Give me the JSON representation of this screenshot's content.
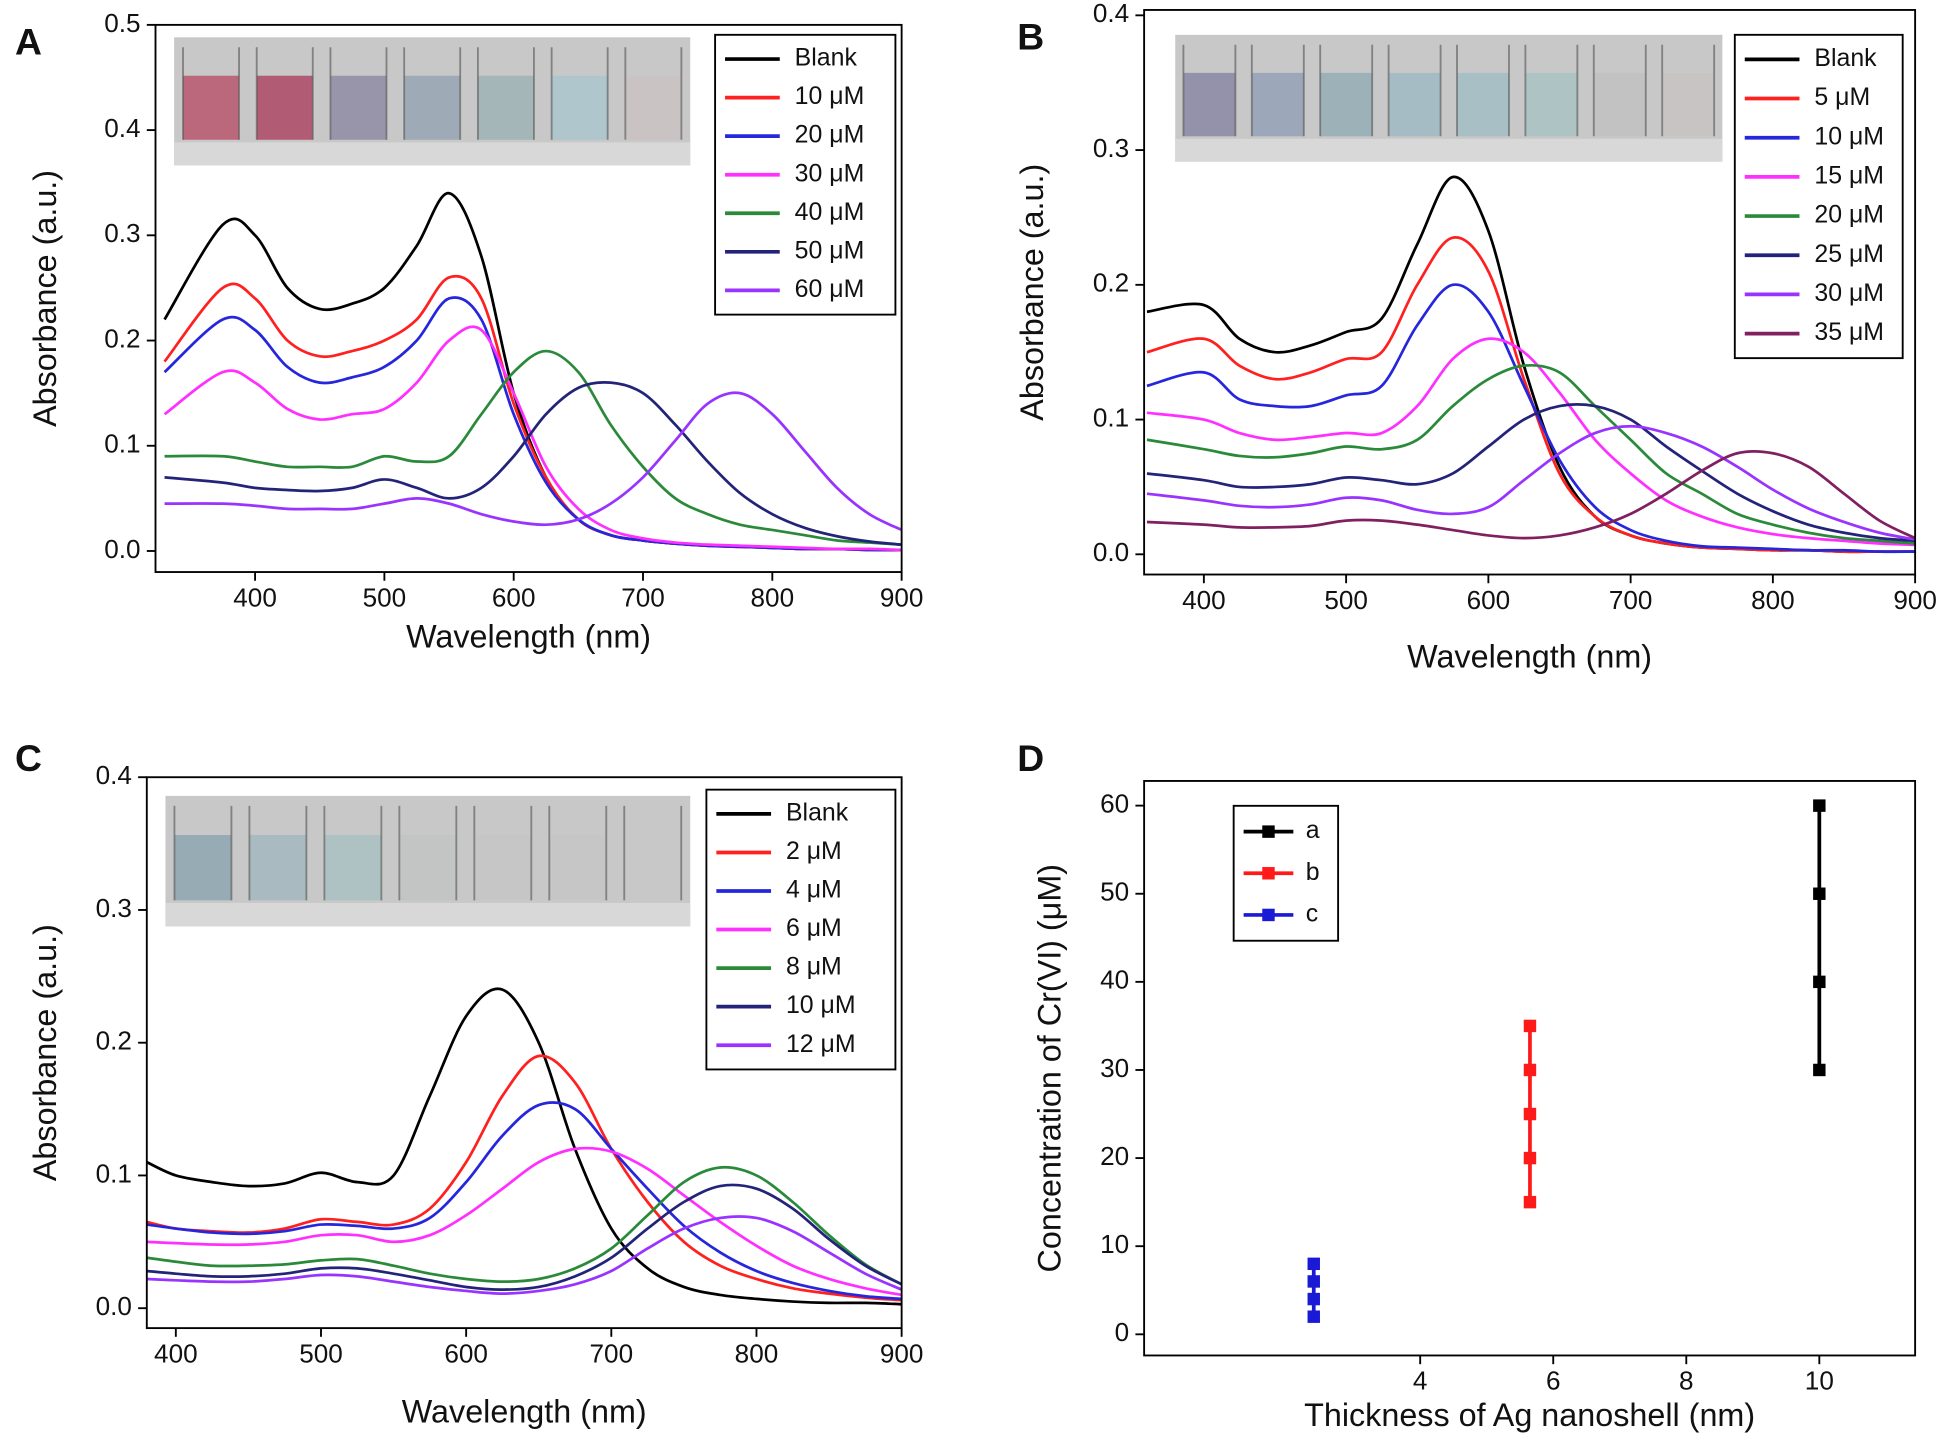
{
  "chart_data": [
    {
      "type": "line",
      "title": "A",
      "x_label": "Wavelength (nm)",
      "y_label": "Absorbance (a.u.)",
      "legend": "upper right",
      "xlim": [
        323,
        900
      ],
      "ylim": [
        -0.02,
        0.5
      ],
      "xticks": [
        400,
        500,
        600,
        700,
        800,
        900
      ],
      "yticks": [
        {
          "value": 0,
          "label": "0.0"
        },
        0.1,
        0.2,
        0.3,
        0.4,
        0.5
      ],
      "x": [
        330,
        375,
        400,
        425,
        450,
        475,
        500,
        525,
        550,
        575,
        600,
        625,
        650,
        675,
        700,
        725,
        750,
        775,
        800,
        825,
        850,
        875,
        900
      ],
      "series": [
        {
          "name": "Blank",
          "color": "#000000",
          "values": [
            0.22,
            0.31,
            0.3,
            0.25,
            0.23,
            0.235,
            0.25,
            0.29,
            0.34,
            0.28,
            0.15,
            0.07,
            0.03,
            0.015,
            0.01,
            0.007,
            0.005,
            0.004,
            0.003,
            0.002,
            0.002,
            0.001,
            0.001
          ]
        },
        {
          "name": "10 μM",
          "color": "#ff2020",
          "values": [
            0.18,
            0.25,
            0.24,
            0.2,
            0.185,
            0.19,
            0.2,
            0.22,
            0.26,
            0.24,
            0.14,
            0.07,
            0.03,
            0.015,
            0.01,
            0.007,
            0.005,
            0.004,
            0.003,
            0.002,
            0.002,
            0.001,
            0.001
          ]
        },
        {
          "name": "20 μM",
          "color": "#2626dc",
          "values": [
            0.17,
            0.22,
            0.21,
            0.175,
            0.16,
            0.165,
            0.175,
            0.2,
            0.24,
            0.22,
            0.13,
            0.065,
            0.03,
            0.015,
            0.01,
            0.007,
            0.005,
            0.004,
            0.003,
            0.002,
            0.002,
            0.001,
            0.001
          ]
        },
        {
          "name": "30 μM",
          "color": "#ff30ff",
          "values": [
            0.13,
            0.17,
            0.16,
            0.135,
            0.125,
            0.13,
            0.135,
            0.16,
            0.2,
            0.21,
            0.15,
            0.08,
            0.04,
            0.02,
            0.012,
            0.008,
            0.006,
            0.005,
            0.004,
            0.003,
            0.002,
            0.002,
            0.001
          ]
        },
        {
          "name": "40 μM",
          "color": "#2a8a3a",
          "values": [
            0.09,
            0.09,
            0.085,
            0.08,
            0.08,
            0.08,
            0.09,
            0.085,
            0.09,
            0.13,
            0.17,
            0.19,
            0.17,
            0.12,
            0.08,
            0.05,
            0.035,
            0.025,
            0.02,
            0.015,
            0.01,
            0.008,
            0.006
          ]
        },
        {
          "name": "50 μM",
          "color": "#23237a",
          "values": [
            0.07,
            0.065,
            0.06,
            0.058,
            0.057,
            0.06,
            0.068,
            0.06,
            0.05,
            0.06,
            0.09,
            0.13,
            0.155,
            0.16,
            0.15,
            0.12,
            0.085,
            0.055,
            0.035,
            0.022,
            0.014,
            0.009,
            0.006
          ]
        },
        {
          "name": "60 μM",
          "color": "#9933ff",
          "values": [
            0.045,
            0.045,
            0.043,
            0.04,
            0.04,
            0.04,
            0.045,
            0.05,
            0.045,
            0.035,
            0.028,
            0.025,
            0.03,
            0.045,
            0.07,
            0.105,
            0.14,
            0.15,
            0.13,
            0.095,
            0.06,
            0.035,
            0.02
          ]
        }
      ]
    },
    {
      "type": "line",
      "title": "B",
      "x_label": "Wavelength (nm)",
      "y_label": "Absorbance (a.u.)",
      "legend": "upper right",
      "xlim": [
        358,
        900
      ],
      "ylim": [
        -0.015,
        0.404
      ],
      "xticks": [
        400,
        500,
        600,
        700,
        800,
        900
      ],
      "yticks": [
        {
          "value": 0,
          "label": "0.0"
        },
        0.1,
        0.2,
        0.3,
        0.4
      ],
      "x": [
        360,
        400,
        425,
        450,
        475,
        500,
        525,
        550,
        575,
        600,
        625,
        650,
        675,
        700,
        725,
        750,
        775,
        800,
        825,
        850,
        875,
        900
      ],
      "series": [
        {
          "name": "Blank",
          "color": "#000000",
          "values": [
            0.18,
            0.185,
            0.16,
            0.15,
            0.155,
            0.165,
            0.175,
            0.23,
            0.28,
            0.24,
            0.14,
            0.065,
            0.028,
            0.014,
            0.008,
            0.005,
            0.004,
            0.003,
            0.003,
            0.002,
            0.002,
            0.002
          ]
        },
        {
          "name": "5 μM",
          "color": "#ff2020",
          "values": [
            0.15,
            0.16,
            0.14,
            0.13,
            0.135,
            0.145,
            0.15,
            0.2,
            0.235,
            0.21,
            0.13,
            0.06,
            0.028,
            0.014,
            0.008,
            0.005,
            0.004,
            0.003,
            0.003,
            0.002,
            0.002,
            0.002
          ]
        },
        {
          "name": "10 μM",
          "color": "#2626dc",
          "values": [
            0.125,
            0.135,
            0.115,
            0.11,
            0.11,
            0.118,
            0.125,
            0.17,
            0.2,
            0.18,
            0.125,
            0.07,
            0.035,
            0.018,
            0.01,
            0.006,
            0.005,
            0.004,
            0.003,
            0.003,
            0.002,
            0.002
          ]
        },
        {
          "name": "15 μM",
          "color": "#ff30ff",
          "values": [
            0.105,
            0.1,
            0.09,
            0.085,
            0.087,
            0.09,
            0.09,
            0.11,
            0.145,
            0.16,
            0.15,
            0.12,
            0.085,
            0.06,
            0.04,
            0.028,
            0.02,
            0.015,
            0.012,
            0.01,
            0.008,
            0.007
          ]
        },
        {
          "name": "20 μM",
          "color": "#2a8a3a",
          "values": [
            0.085,
            0.078,
            0.073,
            0.072,
            0.075,
            0.08,
            0.078,
            0.085,
            0.11,
            0.13,
            0.14,
            0.135,
            0.11,
            0.085,
            0.06,
            0.045,
            0.03,
            0.022,
            0.016,
            0.012,
            0.01,
            0.008
          ]
        },
        {
          "name": "25 μM",
          "color": "#23237a",
          "values": [
            0.06,
            0.055,
            0.05,
            0.05,
            0.052,
            0.057,
            0.055,
            0.052,
            0.06,
            0.08,
            0.1,
            0.11,
            0.11,
            0.1,
            0.08,
            0.062,
            0.045,
            0.032,
            0.022,
            0.016,
            0.012,
            0.01
          ]
        },
        {
          "name": "30 μM",
          "color": "#9933ff",
          "values": [
            0.045,
            0.04,
            0.036,
            0.035,
            0.037,
            0.042,
            0.04,
            0.033,
            0.03,
            0.035,
            0.055,
            0.075,
            0.09,
            0.095,
            0.09,
            0.08,
            0.065,
            0.048,
            0.034,
            0.024,
            0.016,
            0.011
          ]
        },
        {
          "name": "35 μM",
          "color": "#802060",
          "values": [
            0.024,
            0.022,
            0.02,
            0.02,
            0.021,
            0.025,
            0.025,
            0.022,
            0.018,
            0.014,
            0.012,
            0.014,
            0.02,
            0.03,
            0.045,
            0.062,
            0.075,
            0.075,
            0.065,
            0.045,
            0.025,
            0.012
          ]
        }
      ]
    },
    {
      "type": "line",
      "title": "C",
      "x_label": "Wavelength (nm)",
      "y_label": "Absorbance (a.u.)",
      "legend": "upper right",
      "xlim": [
        380,
        900
      ],
      "ylim": [
        -0.015,
        0.4
      ],
      "xticks": [
        400,
        500,
        600,
        700,
        800,
        900
      ],
      "yticks": [
        {
          "value": 0,
          "label": "0.0"
        },
        0.1,
        0.2,
        0.3,
        0.4
      ],
      "x": [
        380,
        400,
        425,
        450,
        475,
        500,
        525,
        550,
        575,
        600,
        625,
        650,
        675,
        700,
        725,
        750,
        775,
        800,
        825,
        850,
        875,
        900
      ],
      "series": [
        {
          "name": "Blank",
          "color": "#000000",
          "values": [
            0.11,
            0.1,
            0.095,
            0.092,
            0.094,
            0.102,
            0.095,
            0.1,
            0.16,
            0.22,
            0.24,
            0.2,
            0.12,
            0.06,
            0.03,
            0.016,
            0.01,
            0.007,
            0.005,
            0.004,
            0.004,
            0.003
          ]
        },
        {
          "name": "2 μM",
          "color": "#ff2020",
          "values": [
            0.065,
            0.06,
            0.058,
            0.057,
            0.06,
            0.067,
            0.065,
            0.063,
            0.075,
            0.11,
            0.16,
            0.19,
            0.17,
            0.12,
            0.08,
            0.05,
            0.032,
            0.022,
            0.015,
            0.011,
            0.008,
            0.006
          ]
        },
        {
          "name": "4 μM",
          "color": "#2626dc",
          "values": [
            0.063,
            0.06,
            0.057,
            0.056,
            0.058,
            0.063,
            0.062,
            0.06,
            0.068,
            0.095,
            0.13,
            0.153,
            0.15,
            0.12,
            0.09,
            0.062,
            0.042,
            0.028,
            0.019,
            0.013,
            0.009,
            0.007
          ]
        },
        {
          "name": "6 μM",
          "color": "#ff30ff",
          "values": [
            0.05,
            0.049,
            0.048,
            0.048,
            0.05,
            0.055,
            0.055,
            0.05,
            0.055,
            0.07,
            0.09,
            0.11,
            0.12,
            0.118,
            0.105,
            0.085,
            0.065,
            0.047,
            0.032,
            0.022,
            0.015,
            0.01
          ]
        },
        {
          "name": "8 μM",
          "color": "#2a8a3a",
          "values": [
            0.038,
            0.035,
            0.032,
            0.032,
            0.033,
            0.036,
            0.037,
            0.032,
            0.026,
            0.022,
            0.02,
            0.022,
            0.03,
            0.045,
            0.07,
            0.095,
            0.106,
            0.1,
            0.08,
            0.055,
            0.033,
            0.018
          ]
        },
        {
          "name": "10 μM",
          "color": "#23237a",
          "values": [
            0.028,
            0.026,
            0.024,
            0.024,
            0.026,
            0.03,
            0.03,
            0.026,
            0.021,
            0.016,
            0.014,
            0.016,
            0.024,
            0.038,
            0.06,
            0.08,
            0.092,
            0.09,
            0.075,
            0.052,
            0.032,
            0.018
          ]
        },
        {
          "name": "12 μM",
          "color": "#9933ff",
          "values": [
            0.022,
            0.021,
            0.02,
            0.02,
            0.022,
            0.025,
            0.024,
            0.02,
            0.016,
            0.013,
            0.011,
            0.013,
            0.018,
            0.028,
            0.045,
            0.06,
            0.068,
            0.068,
            0.058,
            0.042,
            0.026,
            0.014
          ]
        }
      ]
    },
    {
      "type": "line",
      "title": "D",
      "x_label": "Thickness of Ag nanoshell (nm)",
      "y_label": "Concentration of Cr(VI) (μM)",
      "legend": "upper left",
      "marker": "square",
      "xlim": [
        -0.15,
        11.44
      ],
      "ylim": [
        -2.4,
        62.8
      ],
      "xticks": [
        4,
        6,
        8,
        10
      ],
      "yticks": [
        0,
        10,
        20,
        30,
        40,
        50,
        60
      ],
      "series": [
        {
          "name": "a",
          "color": "#000000",
          "x": [
            10,
            10,
            10,
            10
          ],
          "values": [
            30,
            40,
            50,
            60
          ]
        },
        {
          "name": "b",
          "color": "#ff1a1a",
          "x": [
            5.65,
            5.65,
            5.65,
            5.65,
            5.65
          ],
          "values": [
            15,
            20,
            25,
            30,
            35
          ]
        },
        {
          "name": "c",
          "color": "#1a1ad6",
          "x": [
            2.4,
            2.4,
            2.4,
            2.4
          ],
          "values": [
            2,
            4,
            6,
            8
          ]
        }
      ]
    }
  ]
}
